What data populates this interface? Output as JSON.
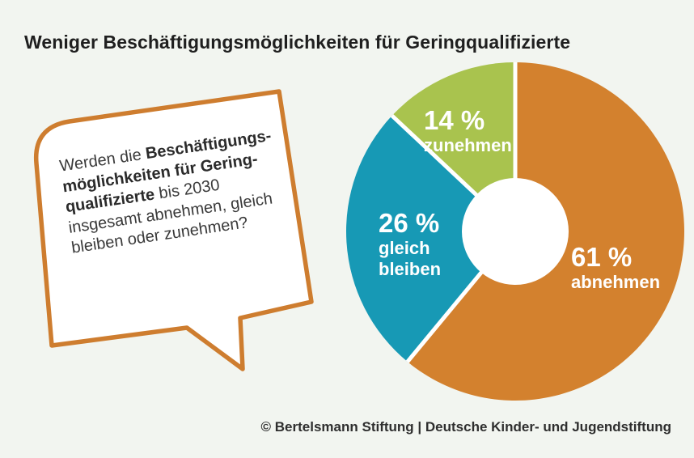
{
  "page": {
    "background_color": "#F2F5F0",
    "title": "Weniger Beschäftigungsmöglichkeiten für Geringqualifizierte",
    "footer": "© Bertelsmann Stiftung | Deutsche Kinder- und Jugendstiftung"
  },
  "bubble": {
    "border_color": "#CE7D2F",
    "fill_color": "#FFFFFF",
    "lines": [
      {
        "parts": [
          {
            "t": "Werden die ",
            "b": false
          },
          {
            "t": "Beschäftigungs-",
            "b": true
          }
        ]
      },
      {
        "parts": [
          {
            "t": "möglichkeiten für Gering-",
            "b": true
          }
        ]
      },
      {
        "parts": [
          {
            "t": "qualifizierte",
            "b": true
          },
          {
            "t": " bis 2030",
            "b": false
          }
        ]
      },
      {
        "parts": [
          {
            "t": "insgesamt abnehmen, gleich",
            "b": false
          }
        ]
      },
      {
        "parts": [
          {
            "t": "bleiben oder zunehmen?",
            "b": false
          }
        ]
      }
    ]
  },
  "chart_data": {
    "type": "pie",
    "donut": true,
    "direction": "clockwise",
    "start_angle_deg": 0,
    "unit": "%",
    "label_color": "#FFFFFF",
    "separator_color": "#FFFFFF",
    "hole_color": "#FFFFFF",
    "slices": [
      {
        "label": "abnehmen",
        "value": 61,
        "percent_label": "61 %",
        "color": "#D3812E"
      },
      {
        "label": "gleich bleiben",
        "value": 26,
        "percent_label": "26 %",
        "color": "#1799B5"
      },
      {
        "label": "zunehmen",
        "value": 14,
        "percent_label": "14 %",
        "color": "#A9C34E"
      }
    ]
  }
}
